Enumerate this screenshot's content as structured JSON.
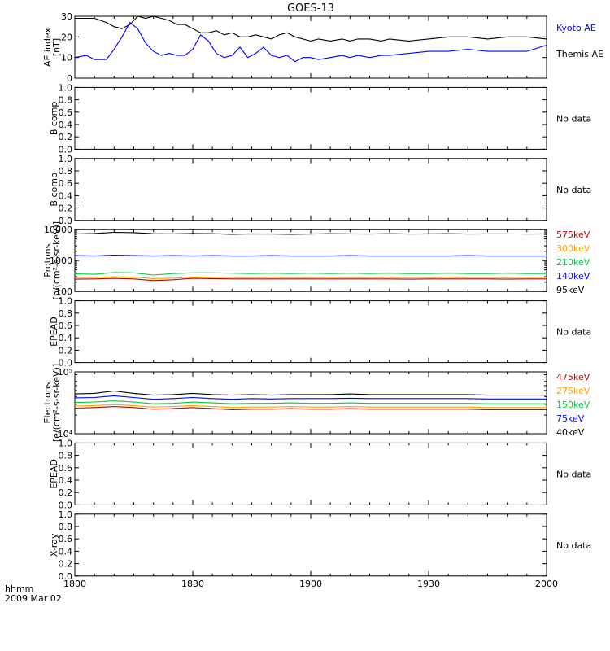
{
  "title": "GOES-13",
  "footer": {
    "line1": "hhmm",
    "line2": "2009 Mar 02"
  },
  "x_ticks": [
    "1800",
    "1830",
    "1900",
    "1930",
    "2000"
  ],
  "panels": [
    {
      "id": "ae",
      "ylabel": [
        "AE index",
        "[nT]"
      ],
      "yscale": "linear",
      "yrange": [
        0,
        30
      ],
      "yticks": [
        "0",
        "10",
        "20",
        "30"
      ],
      "legend": [
        {
          "label": "Kyoto AE",
          "color": "#0000ff"
        },
        {
          "label": "Themis AE",
          "color": "#000000"
        }
      ]
    },
    {
      "id": "bcomp1",
      "ylabel": [
        "B comp"
      ],
      "yscale": "linear",
      "yrange": [
        0,
        1
      ],
      "yticks": [
        "0.0",
        "0.2",
        "0.4",
        "0.6",
        "0.8",
        "1.0"
      ],
      "nodata": "No data"
    },
    {
      "id": "bcomp2",
      "ylabel": [
        "B comp"
      ],
      "yscale": "linear",
      "yrange": [
        0,
        1
      ],
      "yticks": [
        "0.0",
        "0.2",
        "0.4",
        "0.6",
        "0.8",
        "1.0"
      ],
      "nodata": "No data"
    },
    {
      "id": "protons",
      "ylabel": [
        "Protons",
        "[p/(cm²-s-sr-keV)]"
      ],
      "yscale": "log",
      "yrange": [
        100,
        10000
      ],
      "yticks": [
        "100",
        "1000",
        "10000"
      ],
      "legend": [
        {
          "label": "575keV",
          "color": "#a01010"
        },
        {
          "label": "300keV",
          "color": "#ffa500"
        },
        {
          "label": "210keV",
          "color": "#00cc44"
        },
        {
          "label": "140keV",
          "color": "#0000ff"
        },
        {
          "label": "95keV",
          "color": "#000000"
        }
      ]
    },
    {
      "id": "epead1",
      "ylabel": [
        "EPEAD"
      ],
      "yscale": "linear",
      "yrange": [
        0,
        1
      ],
      "yticks": [
        "0.0",
        "0.2",
        "0.4",
        "0.6",
        "0.8",
        "1.0"
      ],
      "nodata": "No data"
    },
    {
      "id": "electrons",
      "ylabel": [
        "Electrons",
        "[e/(cm²-s-sr-keV)]"
      ],
      "yscale": "log",
      "yrange": [
        10000,
        100000
      ],
      "yticks": [
        "10⁴",
        "10⁵"
      ],
      "legend": [
        {
          "label": "475keV",
          "color": "#a01010"
        },
        {
          "label": "275keV",
          "color": "#ffa500"
        },
        {
          "label": "150keV",
          "color": "#00cc44"
        },
        {
          "label": "75keV",
          "color": "#0000ff"
        },
        {
          "label": "40keV",
          "color": "#000000"
        }
      ]
    },
    {
      "id": "epead2",
      "ylabel": [
        "EPEAD"
      ],
      "yscale": "linear",
      "yrange": [
        0,
        1
      ],
      "yticks": [
        "0.0",
        "0.2",
        "0.4",
        "0.6",
        "0.8",
        "1.0"
      ],
      "nodata": "No data"
    },
    {
      "id": "xray",
      "ylabel": [
        "X-ray"
      ],
      "yscale": "linear",
      "yrange": [
        0,
        1
      ],
      "yticks": [
        "0.0",
        "0.2",
        "0.4",
        "0.6",
        "0.8",
        "1.0"
      ],
      "nodata": "No data"
    }
  ],
  "chart_data": [
    {
      "type": "line",
      "panel": "ae",
      "xlabel": "",
      "ylabel": "AE index [nT]",
      "ylim": [
        0,
        30
      ],
      "x_range": [
        "18:00",
        "20:00"
      ],
      "x": [
        0,
        3,
        5,
        8,
        10,
        12,
        14,
        16,
        18,
        20,
        22,
        24,
        26,
        28,
        30,
        32,
        34,
        36,
        38,
        40,
        42,
        44,
        46,
        48,
        50,
        52,
        54,
        56,
        58,
        60,
        62,
        65,
        68,
        70,
        72,
        75,
        78,
        80,
        85,
        90,
        95,
        100,
        105,
        110,
        115,
        120
      ],
      "series": [
        {
          "name": "Themis AE",
          "values": [
            29,
            29,
            29,
            27,
            25,
            24,
            26,
            30,
            29,
            30,
            29,
            28,
            26,
            26,
            24,
            22,
            22,
            23,
            21,
            22,
            20,
            20,
            21,
            20,
            19,
            21,
            22,
            20,
            19,
            18,
            19,
            18,
            19,
            18,
            19,
            19,
            18,
            19,
            18,
            19,
            20,
            20,
            19,
            20,
            20,
            19
          ]
        },
        {
          "name": "Kyoto AE",
          "values": [
            10,
            11,
            9,
            9,
            14,
            20,
            27,
            24,
            17,
            13,
            11,
            12,
            11,
            11,
            14,
            21,
            18,
            12,
            10,
            11,
            15,
            10,
            12,
            15,
            11,
            10,
            11,
            8,
            10,
            10,
            9,
            10,
            11,
            10,
            11,
            10,
            11,
            11,
            12,
            13,
            13,
            14,
            13,
            13,
            13,
            16
          ]
        }
      ]
    },
    {
      "type": "line",
      "panel": "protons",
      "ylabel": "Protons [p/(cm²-s-sr-keV)]",
      "ylim": [
        100,
        10000
      ],
      "x_range": [
        "18:00",
        "20:00"
      ],
      "x": [
        0,
        5,
        10,
        15,
        20,
        25,
        30,
        35,
        40,
        45,
        50,
        55,
        60,
        65,
        70,
        75,
        80,
        85,
        90,
        95,
        100,
        105,
        110,
        115,
        120
      ],
      "series": [
        {
          "name": "95keV",
          "values": [
            7200,
            7500,
            8200,
            8000,
            7400,
            7300,
            7500,
            7400,
            7100,
            7300,
            7200,
            7100,
            7200,
            7400,
            7300,
            7200,
            7400,
            7200,
            7300,
            7400,
            7200,
            7300,
            7300,
            7200,
            7300
          ]
        },
        {
          "name": "140keV",
          "values": [
            1450,
            1400,
            1500,
            1450,
            1400,
            1450,
            1400,
            1450,
            1400,
            1400,
            1450,
            1400,
            1400,
            1400,
            1450,
            1400,
            1400,
            1400,
            1400,
            1400,
            1450,
            1400,
            1400,
            1400,
            1400
          ]
        },
        {
          "name": "210keV",
          "values": [
            370,
            360,
            410,
            400,
            340,
            380,
            400,
            400,
            390,
            380,
            390,
            380,
            390,
            380,
            390,
            380,
            390,
            380,
            380,
            390,
            380,
            380,
            390,
            380,
            380
          ]
        },
        {
          "name": "300keV",
          "values": [
            280,
            285,
            300,
            290,
            260,
            270,
            290,
            285,
            280,
            280,
            285,
            280,
            280,
            285,
            280,
            280,
            285,
            280,
            280,
            285,
            280,
            280,
            280,
            285,
            280
          ]
        },
        {
          "name": "575keV",
          "values": [
            250,
            255,
            265,
            255,
            225,
            240,
            265,
            260,
            255,
            255,
            255,
            255,
            255,
            255,
            255,
            255,
            255,
            250,
            255,
            255,
            255,
            255,
            250,
            255,
            255
          ]
        }
      ]
    },
    {
      "type": "line",
      "panel": "electrons",
      "ylabel": "Electrons [e/(cm²-s-sr-keV)]",
      "ylim": [
        10000,
        100000
      ],
      "x_range": [
        "18:00",
        "20:00"
      ],
      "x": [
        0,
        5,
        10,
        15,
        20,
        25,
        30,
        35,
        40,
        45,
        50,
        55,
        60,
        65,
        70,
        75,
        80,
        85,
        90,
        95,
        100,
        105,
        110,
        115,
        120
      ],
      "series": [
        {
          "name": "40keV",
          "values": [
            44000,
            45000,
            49000,
            45000,
            42000,
            43000,
            45000,
            43000,
            42000,
            43000,
            42000,
            43000,
            43000,
            43000,
            44000,
            43000,
            43000,
            43000,
            43000,
            43000,
            43000,
            42000,
            42000,
            42000,
            42000
          ]
        },
        {
          "name": "75keV",
          "values": [
            38000,
            38500,
            41000,
            38500,
            36000,
            37000,
            38500,
            37000,
            36000,
            37000,
            36500,
            37000,
            37000,
            37000,
            37500,
            37000,
            37000,
            37000,
            37000,
            37000,
            37000,
            36500,
            36500,
            36500,
            36500
          ]
        },
        {
          "name": "150keV",
          "values": [
            32000,
            32500,
            34000,
            32500,
            30500,
            31000,
            32500,
            31500,
            30500,
            31000,
            31000,
            31500,
            31000,
            31000,
            31500,
            31000,
            31000,
            31000,
            31000,
            31000,
            31000,
            30500,
            30500,
            30500,
            30500
          ]
        },
        {
          "name": "275keV",
          "values": [
            28000,
            28500,
            29500,
            28500,
            27000,
            27500,
            28500,
            27500,
            26500,
            27000,
            27000,
            27500,
            27000,
            27000,
            27500,
            27000,
            27000,
            27000,
            27000,
            27000,
            27000,
            26500,
            26500,
            26500,
            26500
          ]
        },
        {
          "name": "475keV",
          "values": [
            26000,
            26500,
            27500,
            26500,
            25000,
            25500,
            26500,
            25500,
            24500,
            25000,
            25000,
            25500,
            25000,
            25000,
            25500,
            25000,
            25000,
            25000,
            25000,
            25000,
            25000,
            24500,
            24500,
            24500,
            24500
          ]
        }
      ]
    }
  ]
}
